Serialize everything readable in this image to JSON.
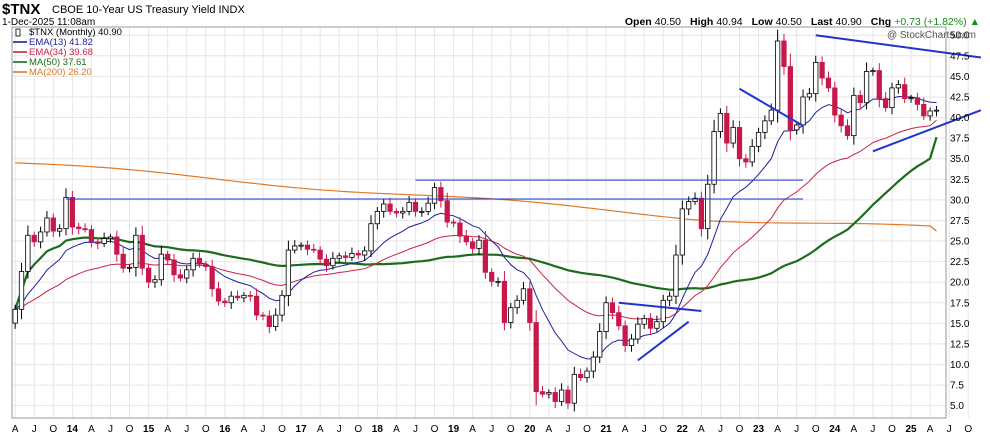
{
  "header": {
    "symbol": "$TNX",
    "name": "CBOE 10-Year US Treasury Yield INDX",
    "date": "1-Dec-2025 11:08am",
    "quote": {
      "open_label": "Open",
      "open": "40.50",
      "high_label": "High",
      "high": "40.94",
      "low_label": "Low",
      "low": "40.50",
      "last_label": "Last",
      "last": "40.90",
      "chg_label": "Chg",
      "chg": "+0.73 (+1.82%)",
      "chg_arrow": "▲"
    },
    "watermark": "@ StockCharts.com"
  },
  "legend": [
    {
      "text": "$TNX (Monthly) 40.90",
      "color": "#000000",
      "swatch": "candle"
    },
    {
      "text": "EMA(13) 41.82",
      "color": "#1f1f9e"
    },
    {
      "text": "EMA(34) 39.68",
      "color": "#cc2244"
    },
    {
      "text": "MA(50) 37.61",
      "color": "#1d6b1d"
    },
    {
      "text": "MA(200) 26.20",
      "color": "#e07a2a"
    }
  ],
  "colors": {
    "up": "#000000",
    "down": "#c8174a",
    "trendline": "#2233cc",
    "ema13": "#1f1f9e",
    "ema34": "#cc2244",
    "ma50": "#1d6b1d",
    "ma200": "#e07a2a",
    "grid": "#e6e6e6"
  },
  "chart_data": {
    "type": "candlestick",
    "title": "$TNX CBOE 10-Year US Treasury Yield INDX",
    "frequency": "Monthly",
    "y_axis_side": "right",
    "ylim": [
      3.5,
      51
    ],
    "yticks": [
      "5.0",
      "7.5",
      "10.0",
      "12.5",
      "15.0",
      "17.5",
      "20.0",
      "22.5",
      "25.0",
      "27.5",
      "30.0",
      "32.5",
      "35.0",
      "37.5",
      "40.0",
      "42.5",
      "45.0",
      "47.5",
      "50.0"
    ],
    "start": "2013-04",
    "xtick_labels": [
      "A",
      "J",
      "O",
      "14",
      "A",
      "J",
      "O",
      "15",
      "A",
      "J",
      "O",
      "16",
      "A",
      "J",
      "O",
      "17",
      "A",
      "J",
      "O",
      "18",
      "A",
      "J",
      "O",
      "19",
      "A",
      "J",
      "O",
      "20",
      "A",
      "J",
      "O",
      "21",
      "A",
      "J",
      "O",
      "22",
      "A",
      "J",
      "O",
      "23",
      "A",
      "J",
      "O",
      "24",
      "A",
      "J",
      "O",
      "25",
      "A",
      "J",
      "O"
    ],
    "xtick_months": [
      "2013-04",
      "2013-07",
      "2013-10",
      "2014-01",
      "2014-04",
      "2014-07",
      "2014-10",
      "2015-01",
      "2015-04",
      "2015-07",
      "2015-10",
      "2016-01",
      "2016-04",
      "2016-07",
      "2016-10",
      "2017-01",
      "2017-04",
      "2017-07",
      "2017-10",
      "2018-01",
      "2018-04",
      "2018-07",
      "2018-10",
      "2019-01",
      "2019-04",
      "2019-07",
      "2019-10",
      "2020-01",
      "2020-04",
      "2020-07",
      "2020-10",
      "2021-01",
      "2021-04",
      "2021-07",
      "2021-10",
      "2022-01",
      "2022-04",
      "2022-07",
      "2022-10",
      "2023-01",
      "2023-04",
      "2023-07",
      "2023-10",
      "2024-01",
      "2024-04",
      "2024-07",
      "2024-10",
      "2025-01",
      "2025-04",
      "2025-07",
      "2025-10"
    ],
    "close": [
      16.7,
      21.3,
      25.7,
      24.9,
      26.1,
      27.8,
      26.2,
      26.5,
      30.3,
      26.7,
      26.5,
      26.4,
      24.9,
      24.7,
      25.3,
      25.5,
      23.4,
      21.7,
      21.8,
      25.7,
      21.7,
      20.0,
      20.3,
      23.4,
      22.7,
      20.9,
      20.5,
      21.5,
      22.9,
      22.2,
      21.9,
      19.2,
      17.7,
      17.5,
      18.3,
      18.1,
      18.4,
      18.3,
      16.0,
      15.9,
      14.6,
      16.0,
      18.4,
      23.9,
      24.4,
      24.5,
      24.0,
      23.9,
      22.8,
      22.0,
      22.9,
      23.2,
      23.0,
      23.5,
      23.3,
      23.8,
      27.1,
      28.6,
      29.5,
      28.6,
      28.4,
      28.6,
      29.7,
      28.6,
      28.6,
      29.6,
      31.5,
      29.9,
      27.3,
      27.2,
      25.6,
      24.9,
      24.1,
      25.1,
      21.2,
      20.1,
      20.1,
      15.1,
      16.9,
      17.8,
      19.2,
      15.1,
      6.7,
      6.4,
      6.6,
      5.5,
      6.9,
      5.3,
      8.8,
      8.4,
      9.2,
      10.9,
      14.0,
      17.5,
      16.3,
      14.7,
      12.3,
      13.1,
      14.9,
      15.6,
      14.4,
      15.2,
      17.8,
      18.3,
      23.3,
      28.9,
      29.8,
      30.2,
      26.5,
      31.9,
      38.3,
      40.5,
      36.9,
      38.8,
      35.0,
      34.6,
      36.5,
      38.2,
      39.6,
      40.9,
      49.3,
      46.2,
      38.5,
      39.1,
      42.5,
      42.9,
      46.7,
      44.8,
      43.6,
      40.3,
      39.0,
      37.8,
      42.7,
      41.8,
      45.6,
      45.7,
      42.3,
      41.2,
      43.6,
      44.0,
      42.3,
      42.4,
      41.6,
      40.2,
      40.8,
      40.9
    ],
    "series": [
      {
        "name": "EMA(13)",
        "last": 41.82
      },
      {
        "name": "EMA(34)",
        "last": 39.68
      },
      {
        "name": "MA(50)",
        "last": 37.61
      },
      {
        "name": "MA(200)",
        "last": 26.2
      }
    ],
    "trendlines": [
      {
        "from": [
          "2013-12",
          30.1
        ],
        "to": [
          "2023-08",
          30.1
        ]
      },
      {
        "from": [
          "2018-07",
          32.4
        ],
        "to": [
          "2023-08",
          32.4
        ]
      },
      {
        "from": [
          "2023-10",
          50.0
        ],
        "to": [
          "2025-12",
          47.3
        ]
      },
      {
        "from": [
          "2024-07",
          35.9
        ],
        "to": [
          "2025-12",
          40.9
        ]
      },
      {
        "from": [
          "2022-10",
          43.5
        ],
        "to": [
          "2023-08",
          39.0
        ]
      },
      {
        "from": [
          "2021-03",
          17.5
        ],
        "to": [
          "2022-04",
          16.5
        ]
      },
      {
        "from": [
          "2021-06",
          10.5
        ],
        "to": [
          "2022-02",
          15.2
        ]
      }
    ],
    "grid": true,
    "legend_position": "top-left"
  }
}
